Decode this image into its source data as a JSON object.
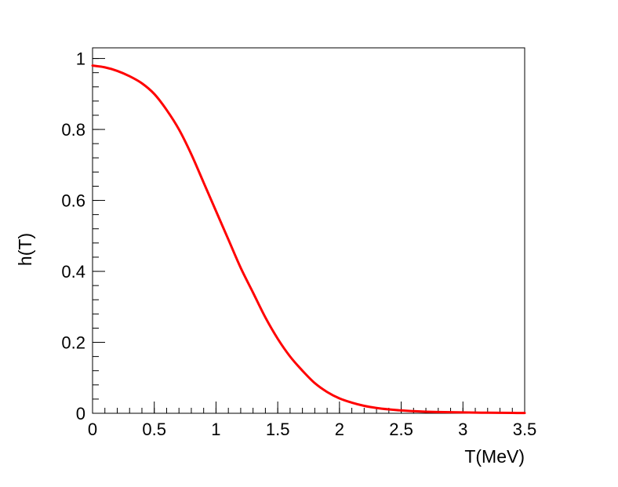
{
  "chart_data": {
    "type": "line",
    "title": "",
    "xlabel": "T(MeV)",
    "ylabel": "h(T)",
    "xlim": [
      0,
      3.5
    ],
    "ylim": [
      0,
      1.03
    ],
    "x_ticks": [
      {
        "value": 0,
        "label": "0"
      },
      {
        "value": 0.5,
        "label": "0.5"
      },
      {
        "value": 1,
        "label": "1"
      },
      {
        "value": 1.5,
        "label": "1.5"
      },
      {
        "value": 2,
        "label": "2"
      },
      {
        "value": 2.5,
        "label": "2.5"
      },
      {
        "value": 3,
        "label": "3"
      },
      {
        "value": 3.5,
        "label": "3.5"
      }
    ],
    "y_ticks": [
      {
        "value": 0,
        "label": "0"
      },
      {
        "value": 0.2,
        "label": "0.2"
      },
      {
        "value": 0.4,
        "label": "0.4"
      },
      {
        "value": 0.6,
        "label": "0.6"
      },
      {
        "value": 0.8,
        "label": "0.8"
      },
      {
        "value": 1,
        "label": "1"
      }
    ],
    "x_minor_step": 0.1,
    "y_minor_step": 0.04,
    "grid": false,
    "line_color": "#ff0000",
    "series": [
      {
        "x": [
          0,
          0.1,
          0.2,
          0.3,
          0.4,
          0.5,
          0.6,
          0.7,
          0.8,
          0.9,
          1.0,
          1.1,
          1.2,
          1.3,
          1.4,
          1.5,
          1.6,
          1.7,
          1.8,
          1.9,
          2.0,
          2.1,
          2.2,
          2.3,
          2.4,
          2.5,
          2.6,
          2.7,
          2.8,
          2.9,
          3.0,
          3.1,
          3.2,
          3.3,
          3.4,
          3.5
        ],
        "y": [
          0.98,
          0.975,
          0.965,
          0.95,
          0.93,
          0.9,
          0.855,
          0.8,
          0.73,
          0.65,
          0.57,
          0.49,
          0.41,
          0.34,
          0.27,
          0.21,
          0.16,
          0.12,
          0.085,
          0.06,
          0.042,
          0.03,
          0.021,
          0.015,
          0.011,
          0.008,
          0.006,
          0.0045,
          0.0035,
          0.003,
          0.0025,
          0.002,
          0.0016,
          0.0013,
          0.001,
          0.0008
        ]
      }
    ]
  }
}
